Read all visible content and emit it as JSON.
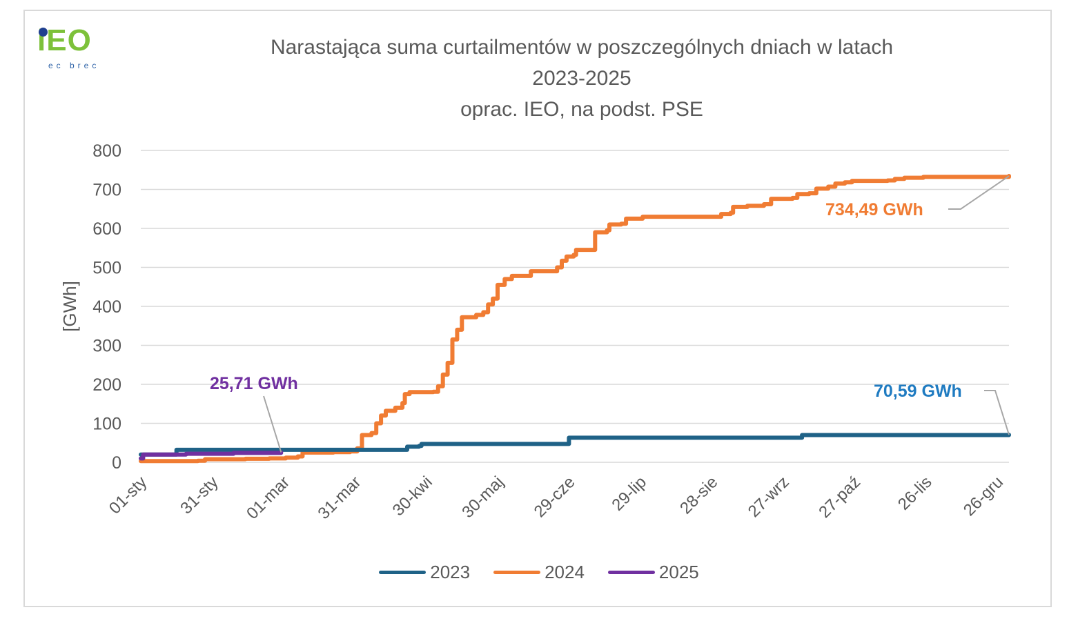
{
  "logo": {
    "main": "iEO",
    "sub": "ec brec"
  },
  "title_lines": [
    "Narastająca suma curtailmentów w poszczególnych dniach w latach",
    "2023-2025",
    "oprac. IEO, na podst. PSE"
  ],
  "colors": {
    "2023": "#1f6287",
    "2024": "#f07c33",
    "2025": "#7030a0",
    "grid": "#d9d9d9",
    "text": "#595959"
  },
  "annotations": {
    "a2024": "734,49 GWh",
    "a2023": "70,59 GWh",
    "a2025": "25,71 GWh"
  },
  "chart_data": {
    "type": "line",
    "ylabel": "[GWh]",
    "ylim": [
      0,
      800
    ],
    "yticks": [
      0,
      100,
      200,
      300,
      400,
      500,
      600,
      700,
      800
    ],
    "grid": true,
    "legend_position": "bottom",
    "x_tick_labels": [
      "01-sty",
      "31-sty",
      "01-mar",
      "31-mar",
      "30-kwi",
      "30-maj",
      "29-cze",
      "29-lip",
      "28-sie",
      "27-wrz",
      "27-paź",
      "26-lis",
      "26-gru"
    ],
    "x_tick_days": [
      1,
      31,
      61,
      91,
      121,
      151,
      181,
      211,
      241,
      271,
      301,
      331,
      361
    ],
    "x_range_days": [
      1,
      366
    ],
    "series": [
      {
        "name": "2023",
        "points": [
          [
            1,
            20
          ],
          [
            15,
            20
          ],
          [
            16,
            32
          ],
          [
            90,
            32
          ],
          [
            112,
            32
          ],
          [
            113,
            40
          ],
          [
            118,
            42
          ],
          [
            119,
            47
          ],
          [
            180,
            47
          ],
          [
            181,
            63
          ],
          [
            278,
            63
          ],
          [
            279,
            70
          ],
          [
            366,
            70.59
          ]
        ]
      },
      {
        "name": "2024",
        "points": [
          [
            1,
            3
          ],
          [
            25,
            4
          ],
          [
            28,
            8
          ],
          [
            45,
            9
          ],
          [
            55,
            10
          ],
          [
            62,
            12
          ],
          [
            67,
            15
          ],
          [
            69,
            25
          ],
          [
            82,
            26
          ],
          [
            89,
            28
          ],
          [
            92,
            36
          ],
          [
            94,
            70
          ],
          [
            98,
            75
          ],
          [
            100,
            100
          ],
          [
            102,
            120
          ],
          [
            104,
            132
          ],
          [
            108,
            140
          ],
          [
            111,
            152
          ],
          [
            112,
            175
          ],
          [
            114,
            180
          ],
          [
            124,
            181
          ],
          [
            126,
            195
          ],
          [
            128,
            225
          ],
          [
            130,
            255
          ],
          [
            132,
            315
          ],
          [
            134,
            340
          ],
          [
            136,
            372
          ],
          [
            142,
            378
          ],
          [
            145,
            385
          ],
          [
            147,
            405
          ],
          [
            149,
            420
          ],
          [
            151,
            455
          ],
          [
            154,
            470
          ],
          [
            157,
            478
          ],
          [
            164,
            478
          ],
          [
            165,
            490
          ],
          [
            175,
            490
          ],
          [
            176,
            500
          ],
          [
            178,
            517
          ],
          [
            180,
            528
          ],
          [
            183,
            532
          ],
          [
            184,
            545
          ],
          [
            191,
            545
          ],
          [
            192,
            590
          ],
          [
            197,
            595
          ],
          [
            198,
            610
          ],
          [
            203,
            612
          ],
          [
            205,
            625
          ],
          [
            212,
            630
          ],
          [
            222,
            630
          ],
          [
            243,
            630
          ],
          [
            245,
            637
          ],
          [
            249,
            640
          ],
          [
            250,
            655
          ],
          [
            256,
            658
          ],
          [
            263,
            662
          ],
          [
            266,
            676
          ],
          [
            275,
            678
          ],
          [
            277,
            688
          ],
          [
            282,
            690
          ],
          [
            285,
            702
          ],
          [
            290,
            707
          ],
          [
            293,
            715
          ],
          [
            297,
            718
          ],
          [
            300,
            722
          ],
          [
            315,
            723
          ],
          [
            318,
            727
          ],
          [
            322,
            730
          ],
          [
            330,
            732
          ],
          [
            360,
            732
          ],
          [
            366,
            734.49
          ]
        ]
      },
      {
        "name": "2025",
        "points": [
          [
            1,
            10
          ],
          [
            2,
            20
          ],
          [
            20,
            22
          ],
          [
            40,
            24
          ],
          [
            60,
            25.71
          ]
        ]
      }
    ]
  }
}
